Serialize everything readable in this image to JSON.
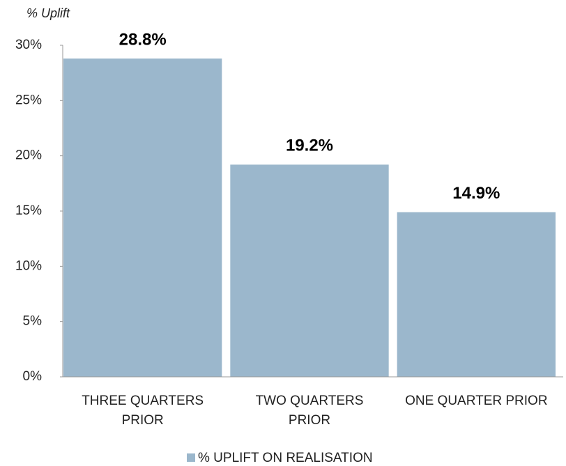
{
  "chart_data": {
    "type": "bar",
    "y_axis_label": "% Uplift",
    "categories": [
      "THREE QUARTERS\nPRIOR",
      "TWO QUARTERS\nPRIOR",
      "ONE QUARTER PRIOR"
    ],
    "series": [
      {
        "name": "% UPLIFT ON REALISATION",
        "color": "#9bb7cc",
        "values": [
          28.8,
          19.2,
          14.9
        ],
        "value_labels": [
          "28.8%",
          "19.2%",
          "14.9%"
        ]
      }
    ],
    "ylim": [
      0,
      30
    ],
    "yticks": [
      {
        "value": 0,
        "label": "0%"
      },
      {
        "value": 5,
        "label": "5%"
      },
      {
        "value": 10,
        "label": "10%"
      },
      {
        "value": 15,
        "label": "15%"
      },
      {
        "value": 20,
        "label": "20%"
      },
      {
        "value": 25,
        "label": "25%"
      },
      {
        "value": 30,
        "label": "30%"
      }
    ],
    "legend": "bottom"
  }
}
